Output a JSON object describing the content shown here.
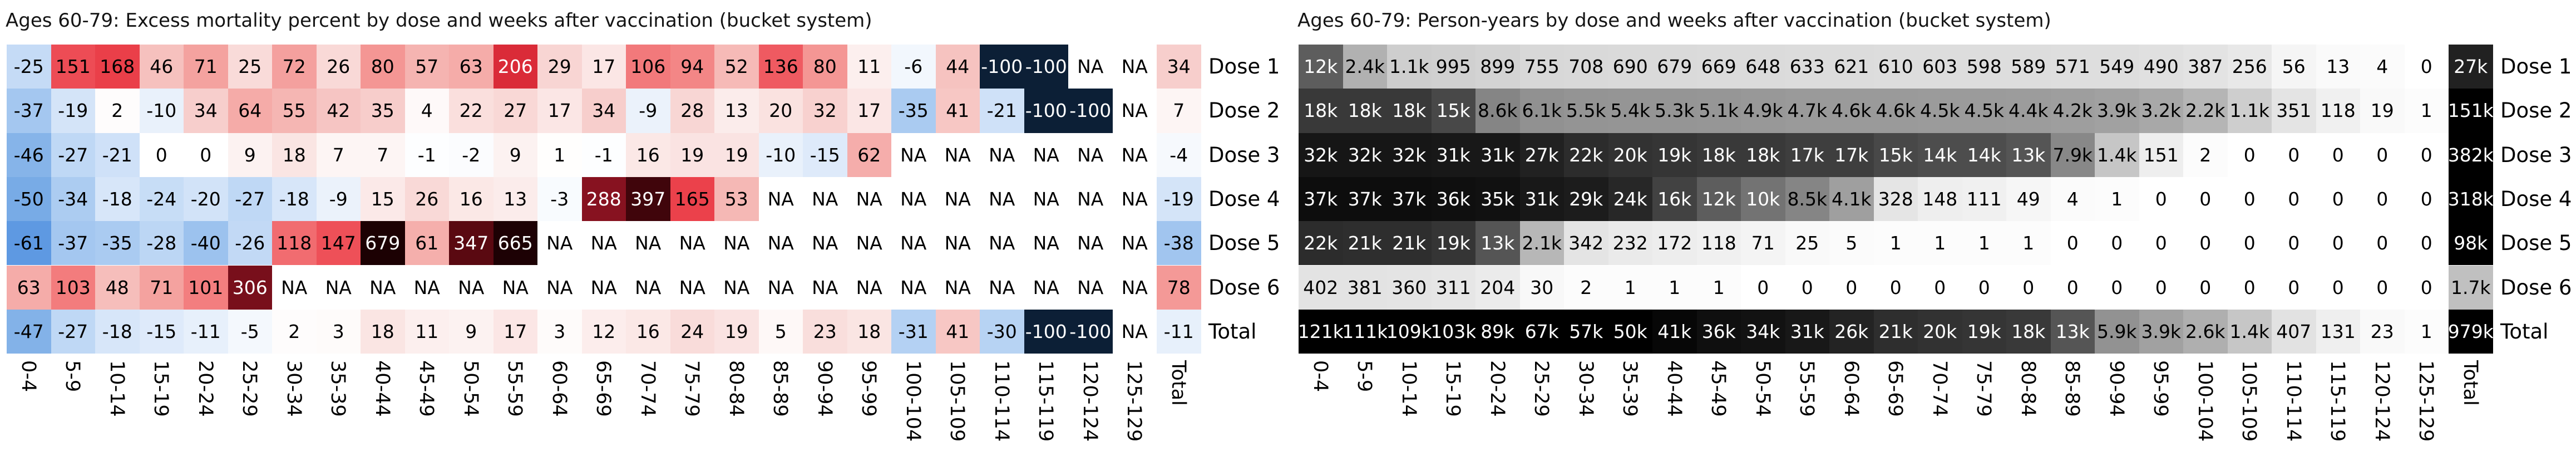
{
  "chart_data": [
    {
      "type": "heatmap",
      "title": "Ages 60-79: Excess mortality percent by dose and weeks after vaccination (bucket system)",
      "value_unit": "excess mortality percent",
      "na_label": "NA",
      "legend_position": "none",
      "columns": [
        "0-4",
        "5-9",
        "10-14",
        "15-19",
        "20-24",
        "25-29",
        "30-34",
        "35-39",
        "40-44",
        "45-49",
        "50-54",
        "55-59",
        "60-64",
        "65-69",
        "70-74",
        "75-79",
        "80-84",
        "85-89",
        "90-94",
        "95-99",
        "100-104",
        "105-109",
        "110-114",
        "115-119",
        "120-124",
        "125-129",
        "Total"
      ],
      "rows": [
        "Dose 1",
        "Dose 2",
        "Dose 3",
        "Dose 4",
        "Dose 5",
        "Dose 6",
        "Total"
      ],
      "values": [
        [
          -25,
          151,
          168,
          46,
          71,
          25,
          72,
          26,
          80,
          57,
          63,
          206,
          29,
          17,
          106,
          94,
          52,
          136,
          80,
          11,
          -6,
          44,
          -100,
          -100,
          "NA",
          "NA",
          34
        ],
        [
          -37,
          -19,
          2,
          -10,
          34,
          64,
          55,
          42,
          35,
          4,
          22,
          27,
          17,
          34,
          -9,
          28,
          13,
          20,
          32,
          17,
          -35,
          41,
          -21,
          -100,
          -100,
          "NA",
          7
        ],
        [
          -46,
          -27,
          -21,
          0,
          0,
          9,
          18,
          7,
          7,
          -1,
          -2,
          9,
          1,
          -1,
          16,
          19,
          19,
          -10,
          -15,
          62,
          "NA",
          "NA",
          "NA",
          "NA",
          "NA",
          "NA",
          -4
        ],
        [
          -50,
          -34,
          -18,
          -24,
          -20,
          -27,
          -18,
          -9,
          15,
          26,
          16,
          13,
          -3,
          288,
          397,
          165,
          53,
          "NA",
          "NA",
          "NA",
          "NA",
          "NA",
          "NA",
          "NA",
          "NA",
          "NA",
          -19
        ],
        [
          -61,
          -37,
          -35,
          -28,
          -40,
          -26,
          118,
          147,
          679,
          61,
          347,
          665,
          "NA",
          "NA",
          "NA",
          "NA",
          "NA",
          "NA",
          "NA",
          "NA",
          "NA",
          "NA",
          "NA",
          "NA",
          "NA",
          "NA",
          -38
        ],
        [
          63,
          103,
          48,
          71,
          101,
          306,
          "NA",
          "NA",
          "NA",
          "NA",
          "NA",
          "NA",
          "NA",
          "NA",
          "NA",
          "NA",
          "NA",
          "NA",
          "NA",
          "NA",
          "NA",
          "NA",
          "NA",
          "NA",
          "NA",
          "NA",
          78
        ],
        [
          -47,
          -27,
          -18,
          -15,
          -11,
          -5,
          2,
          3,
          18,
          11,
          9,
          17,
          3,
          12,
          16,
          24,
          19,
          5,
          23,
          18,
          -31,
          41,
          -30,
          -100,
          -100,
          "NA",
          -11
        ]
      ],
      "palette": "blue-white-red diverging",
      "colors": {
        "negative_extreme": "#0c1f36",
        "zero": "#ffffff",
        "positive_extreme": "#1a0103"
      },
      "color_scale": [
        [
          -100,
          "#0c1f36"
        ],
        [
          -90,
          "#16365c"
        ],
        [
          -75,
          "#3567b1"
        ],
        [
          -61,
          "#5e99e2"
        ],
        [
          -50,
          "#78abe6"
        ],
        [
          -40,
          "#9cc2ee"
        ],
        [
          -30,
          "#b7d3f3"
        ],
        [
          -20,
          "#d2e3f8"
        ],
        [
          -10,
          "#e9f1fb"
        ],
        [
          0,
          "#ffffff"
        ],
        [
          10,
          "#fcf0ef"
        ],
        [
          20,
          "#fae2e0"
        ],
        [
          30,
          "#f8d3d1"
        ],
        [
          45,
          "#f6c2bf"
        ],
        [
          60,
          "#f5b0ad"
        ],
        [
          80,
          "#f49694"
        ],
        [
          100,
          "#f37f80"
        ],
        [
          120,
          "#f16a6e"
        ],
        [
          140,
          "#ef565e"
        ],
        [
          160,
          "#ec444e"
        ],
        [
          180,
          "#e63742"
        ],
        [
          206,
          "#da2b38"
        ],
        [
          240,
          "#b01c2d"
        ],
        [
          270,
          "#971626"
        ],
        [
          300,
          "#7d101c"
        ],
        [
          340,
          "#5e0a12"
        ],
        [
          400,
          "#3e050b"
        ],
        [
          500,
          "#2a0206"
        ],
        [
          700,
          "#1a0103"
        ]
      ],
      "white_text_rule": {
        "neg": -100,
        "pos": 200
      }
    },
    {
      "type": "heatmap",
      "title": "Ages 60-79: Person-years by dose and weeks after vaccination (bucket system)",
      "value_unit": "person-years",
      "na_label": "NA",
      "legend_position": "none",
      "columns": [
        "0-4",
        "5-9",
        "10-14",
        "15-19",
        "20-24",
        "25-29",
        "30-34",
        "35-39",
        "40-44",
        "45-49",
        "50-54",
        "55-59",
        "60-64",
        "65-69",
        "70-74",
        "75-79",
        "80-84",
        "85-89",
        "90-94",
        "95-99",
        "100-104",
        "105-109",
        "110-114",
        "115-119",
        "120-124",
        "125-129",
        "Total"
      ],
      "rows": [
        "Dose 1",
        "Dose 2",
        "Dose 3",
        "Dose 4",
        "Dose 5",
        "Dose 6",
        "Total"
      ],
      "values": [
        [
          "12k",
          "2.4k",
          "1.1k",
          "995",
          "899",
          "755",
          "708",
          "690",
          "679",
          "669",
          "648",
          "633",
          "621",
          "610",
          "603",
          "598",
          "589",
          "571",
          "549",
          "490",
          "387",
          "256",
          "56",
          "13",
          "4",
          "0",
          "27k"
        ],
        [
          "18k",
          "18k",
          "18k",
          "15k",
          "8.6k",
          "6.1k",
          "5.5k",
          "5.4k",
          "5.3k",
          "5.1k",
          "4.9k",
          "4.7k",
          "4.6k",
          "4.6k",
          "4.5k",
          "4.5k",
          "4.4k",
          "4.2k",
          "3.9k",
          "3.2k",
          "2.2k",
          "1.1k",
          "351",
          "118",
          "19",
          "1",
          "151k"
        ],
        [
          "32k",
          "32k",
          "32k",
          "31k",
          "31k",
          "27k",
          "22k",
          "20k",
          "19k",
          "18k",
          "18k",
          "17k",
          "17k",
          "15k",
          "14k",
          "14k",
          "13k",
          "7.9k",
          "1.4k",
          "151",
          "2",
          "0",
          "0",
          "0",
          "0",
          "0",
          "382k"
        ],
        [
          "37k",
          "37k",
          "37k",
          "36k",
          "35k",
          "31k",
          "29k",
          "24k",
          "16k",
          "12k",
          "10k",
          "8.5k",
          "4.1k",
          "328",
          "148",
          "111",
          "49",
          "4",
          "1",
          "0",
          "0",
          "0",
          "0",
          "0",
          "0",
          "0",
          "318k"
        ],
        [
          "22k",
          "21k",
          "21k",
          "19k",
          "13k",
          "2.1k",
          "342",
          "232",
          "172",
          "118",
          "71",
          "25",
          "5",
          "1",
          "1",
          "1",
          "1",
          "0",
          "0",
          "0",
          "0",
          "0",
          "0",
          "0",
          "0",
          "0",
          "98k"
        ],
        [
          "402",
          "381",
          "360",
          "311",
          "204",
          "30",
          "2",
          "1",
          "1",
          "1",
          "0",
          "0",
          "0",
          "0",
          "0",
          "0",
          "0",
          "0",
          "0",
          "0",
          "0",
          "0",
          "0",
          "0",
          "0",
          "0",
          "1.7k"
        ],
        [
          "121k",
          "111k",
          "109k",
          "103k",
          "89k",
          "67k",
          "57k",
          "50k",
          "41k",
          "36k",
          "34k",
          "31k",
          "26k",
          "21k",
          "20k",
          "19k",
          "18k",
          "13k",
          "5.9k",
          "3.9k",
          "2.6k",
          "1.4k",
          "407",
          "131",
          "23",
          "1",
          "979k"
        ]
      ],
      "palette": "white-black sequential",
      "colors": {
        "low": "#ffffff",
        "high": "#000000"
      },
      "color_scale": [
        [
          0,
          "#ffffff"
        ],
        [
          1,
          "#fcfcfc"
        ],
        [
          10,
          "#fafafa"
        ],
        [
          50,
          "#f6f6f6"
        ],
        [
          100,
          "#f1f1f1"
        ],
        [
          200,
          "#ebebeb"
        ],
        [
          350,
          "#e4e4e4"
        ],
        [
          600,
          "#dddddd"
        ],
        [
          1000,
          "#d0d0d0"
        ],
        [
          1500,
          "#c4c4c4"
        ],
        [
          2400,
          "#b1b1b1"
        ],
        [
          3500,
          "#a4a4a4"
        ],
        [
          5000,
          "#979797"
        ],
        [
          7000,
          "#8c8c8c"
        ],
        [
          8600,
          "#858585"
        ],
        [
          10000,
          "#737373"
        ],
        [
          12000,
          "#5d5d5d"
        ],
        [
          14000,
          "#4d4d4d"
        ],
        [
          16000,
          "#424242"
        ],
        [
          18000,
          "#393939"
        ],
        [
          21000,
          "#2e2e2e"
        ],
        [
          24000,
          "#272727"
        ],
        [
          27000,
          "#212121"
        ],
        [
          30000,
          "#1a1a1a"
        ],
        [
          33000,
          "#141414"
        ],
        [
          37000,
          "#0d0d0d"
        ],
        [
          42000,
          "#060606"
        ],
        [
          50000,
          "#000000"
        ]
      ],
      "white_text_rule": {
        "pos": 10000
      }
    }
  ]
}
